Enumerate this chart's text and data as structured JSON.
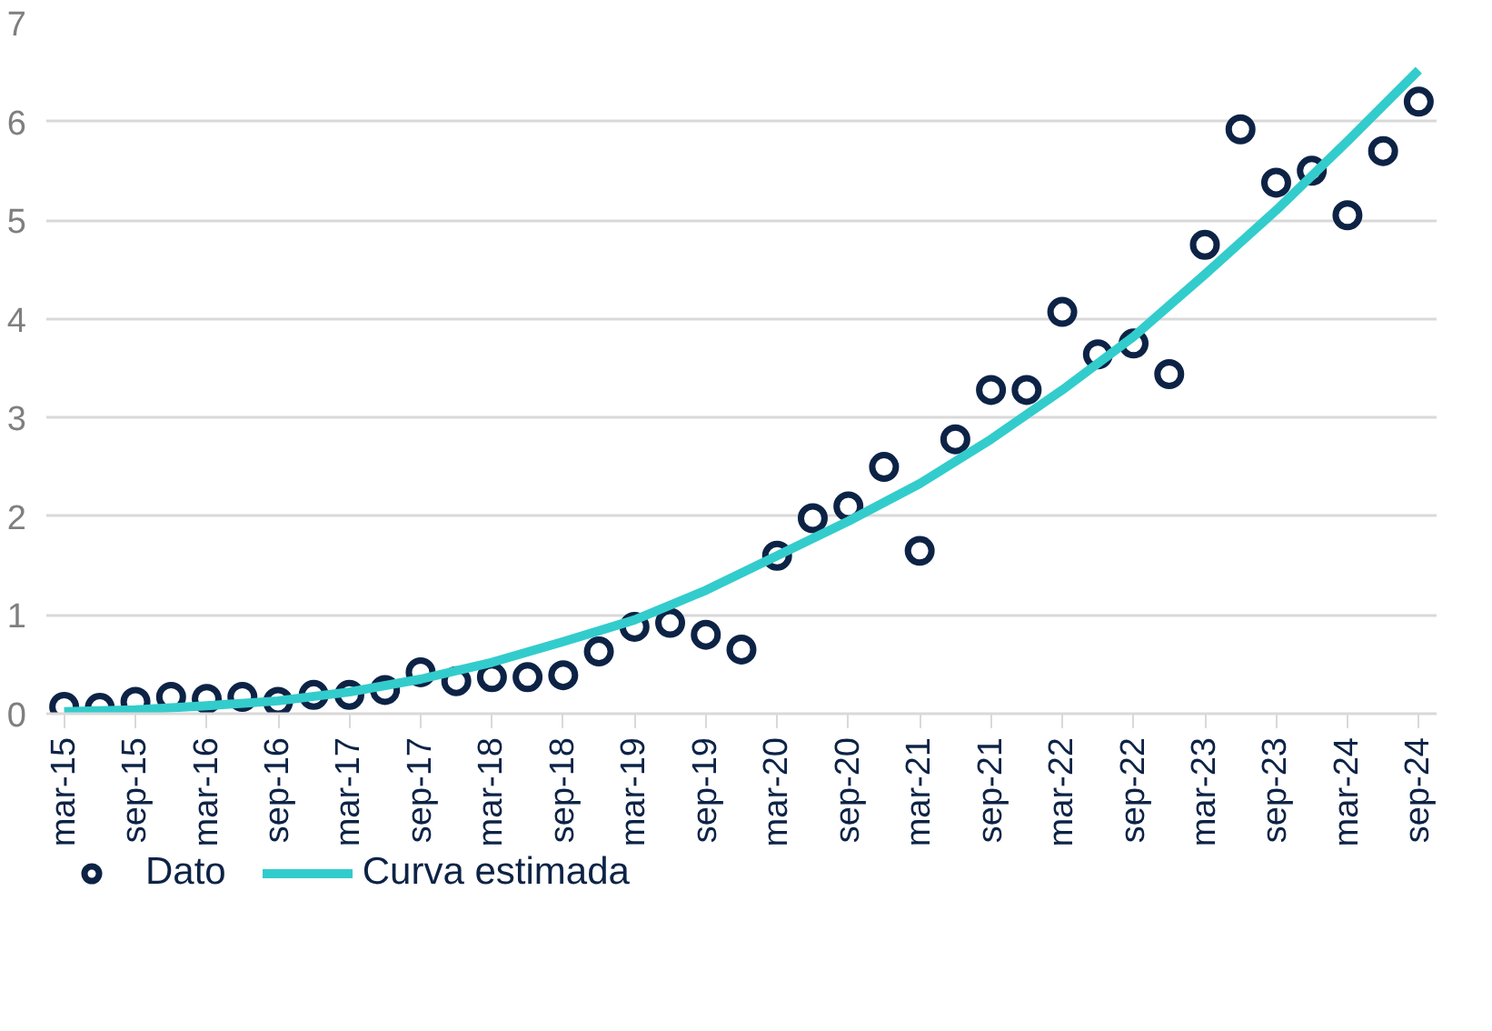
{
  "chart_data": {
    "type": "scatter",
    "categories": [
      "mar-15",
      null,
      "sep-15",
      null,
      "mar-16",
      null,
      "sep-16",
      null,
      "mar-17",
      null,
      "sep-17",
      null,
      "mar-18",
      null,
      "sep-18",
      null,
      "mar-19",
      null,
      "sep-19",
      null,
      "mar-20",
      null,
      "sep-20",
      null,
      "mar-21",
      null,
      "sep-21",
      null,
      "mar-22",
      null,
      "sep-22",
      null,
      "mar-23",
      null,
      "sep-23",
      null,
      "mar-24",
      null,
      "sep-24"
    ],
    "series": [
      {
        "name": "Dato",
        "marker": "circle",
        "color": "#0d2346",
        "values": [
          0.07,
          0.06,
          0.12,
          0.17,
          0.15,
          0.17,
          0.12,
          0.19,
          0.19,
          0.24,
          0.42,
          0.33,
          0.37,
          0.37,
          0.39,
          0.63,
          0.88,
          0.92,
          0.8,
          0.65,
          1.6,
          1.98,
          2.1,
          2.5,
          1.65,
          2.78,
          3.28,
          3.28,
          4.07,
          3.64,
          3.75,
          3.44,
          4.75,
          5.92,
          5.38,
          5.5,
          5.05,
          5.7,
          6.2
        ]
      },
      {
        "name": "Curva estimada",
        "type": "line",
        "line_style": "solid",
        "color": "#33cccc",
        "x": [
          "mar-15",
          "sep-15",
          "mar-16",
          "sep-16",
          "mar-17",
          "sep-17",
          "mar-18",
          "sep-18",
          "mar-19",
          "sep-19",
          "mar-20",
          "sep-20",
          "mar-21",
          "sep-21",
          "mar-22",
          "sep-22",
          "mar-23",
          "sep-23",
          "mar-24",
          "sep-24"
        ],
        "values": [
          0.02,
          0.04,
          0.08,
          0.13,
          0.22,
          0.35,
          0.52,
          0.73,
          0.95,
          1.25,
          1.6,
          1.95,
          2.33,
          2.78,
          3.28,
          3.82,
          4.45,
          5.1,
          5.8,
          6.52
        ]
      }
    ],
    "ylim": [
      0,
      7
    ],
    "yticks": [
      0,
      1,
      2,
      3,
      4,
      5,
      6,
      7
    ],
    "grid": "y",
    "legend": "bottom left"
  }
}
